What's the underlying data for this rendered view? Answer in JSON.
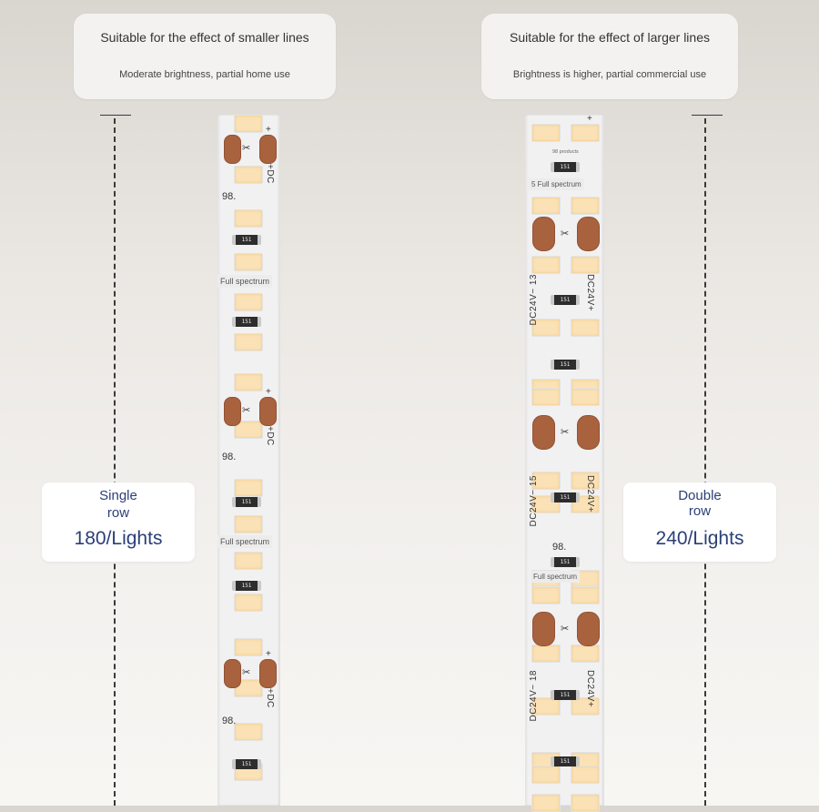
{
  "callouts": {
    "left": {
      "title": "Suitable for the effect of smaller lines",
      "subtitle": "Moderate brightness, partial home use"
    },
    "right": {
      "title": "Suitable for the effect of larger lines",
      "subtitle": "Brightness is higher, partial commercial use"
    }
  },
  "labels": {
    "left": {
      "line1": "Single",
      "line2": "row",
      "count": "180/Lights"
    },
    "right": {
      "line1": "Double",
      "line2": "row",
      "count": "240/Lights"
    }
  },
  "strip_single": {
    "led_count_visible": 16,
    "resistor_code": "151",
    "segment_number": "98.",
    "spectrum_label": "Full spectrum",
    "plus_sign": "+",
    "dc_label": "+DC",
    "scissor_symbol": "✂"
  },
  "strip_double": {
    "led_count_visible": 34,
    "resistor_code": "151",
    "segment_number": "98.",
    "spectrum_label": "Full spectrum",
    "spectrum_label_first": "5 Full spectrum",
    "tiny_product": "98 products",
    "plus_sign": "+",
    "dc_pos": "DC24V+",
    "dc_neg": "DC24V−",
    "segment_numbers": [
      "13",
      "15",
      "18"
    ],
    "scissor_symbol": "✂"
  },
  "colors": {
    "led": "#fbe2b6",
    "pad": "#a9623e",
    "label_text": "#2a3f78",
    "dash": "#3a3a3a"
  }
}
